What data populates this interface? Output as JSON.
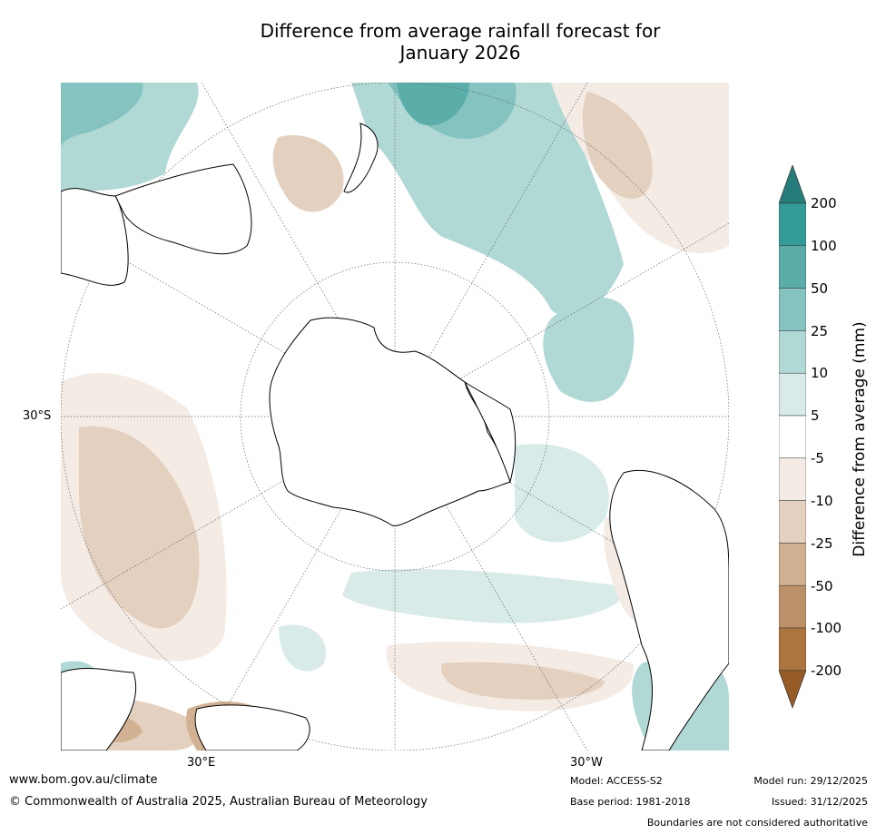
{
  "title": {
    "line1": "Difference from average rainfall forecast for",
    "line2": "January 2026"
  },
  "map": {
    "projection": "south-polar-stereographic",
    "lat_labels": {
      "lat_30s": "30°S"
    },
    "lon_labels": {
      "lon_30e": "30°E",
      "lon_30w": "30°W"
    },
    "land_color": "#ffffff",
    "coastline_color": "#000000",
    "graticule_color": "#666666"
  },
  "colorbar": {
    "title": "Difference from average (mm)",
    "extend": "both",
    "ticks": [
      "200",
      "100",
      "50",
      "25",
      "10",
      "5",
      "-5",
      "-10",
      "-25",
      "-50",
      "-100",
      "-200"
    ],
    "colors": {
      "over": "#267c7a",
      "b100_200": "#339b98",
      "b50_100": "#5bada9",
      "b25_50": "#84c3bf",
      "b10_25": "#b0d8d5",
      "b5_10": "#d8ebe9",
      "b_neutral": "#ffffff",
      "bm10_m5": "#f3ebe4",
      "bm25_m10": "#e3d0bf",
      "bm50_m25": "#d1b192",
      "bm100_m50": "#bd9167",
      "bm200_m100": "#ac743e",
      "under": "#965b26"
    }
  },
  "footer": {
    "website": "www.bom.gov.au/climate",
    "copyright": "© Commonwealth of Australia 2025, Australian Bureau of Meteorology",
    "model": "Model: ACCESS-S2",
    "base_period": "Base period: 1981-2018",
    "model_run": "Model run: 29/12/2025",
    "issued": "Issued: 31/12/2025",
    "disclaimer": "Boundaries are not considered authoritative"
  }
}
